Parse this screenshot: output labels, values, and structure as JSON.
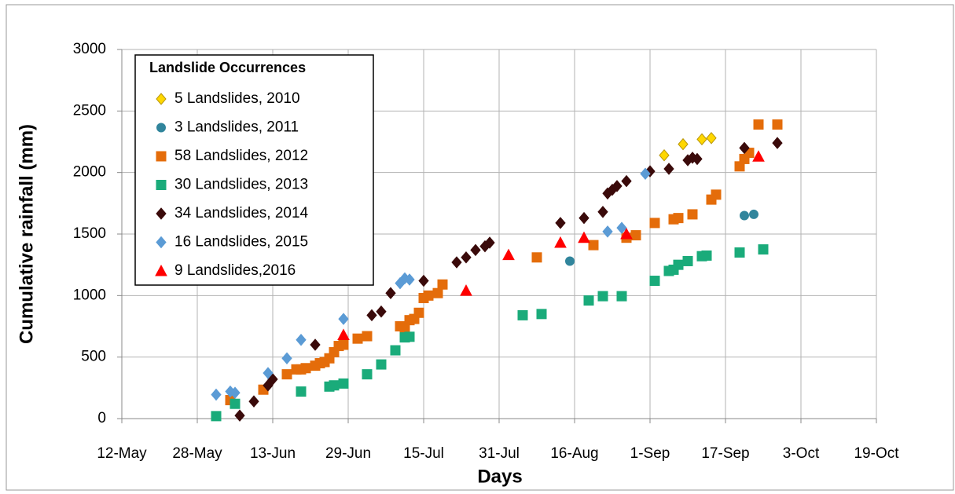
{
  "chart_data": {
    "type": "scatter",
    "y_label": "Cumulative rainfall (mm)",
    "x_label": "Days",
    "legend_title": "Landslide Occurrences",
    "legend": "upper left",
    "grid": true,
    "xlim": [
      "12-May",
      "19-Oct"
    ],
    "xticks": [
      "12-May",
      "28-May",
      "13-Jun",
      "29-Jun",
      "15-Jul",
      "31-Jul",
      "16-Aug",
      "1-Sep",
      "17-Sep",
      "3-Oct",
      "19-Oct"
    ],
    "ylim": [
      0,
      3000
    ],
    "yticks": [
      0,
      500,
      1000,
      1500,
      2000,
      2500,
      3000
    ],
    "series": [
      {
        "name": "5 Landslides, 2010",
        "color": "#ffd700",
        "marker": "diamond",
        "x": [
          "4-Sep",
          "8-Sep",
          "12-Sep",
          "14-Sep"
        ],
        "values": [
          2140,
          2230,
          2270,
          2280
        ]
      },
      {
        "name": "3 Landslides, 2011",
        "color": "#31859c",
        "marker": "circle",
        "x": [
          "15-Aug",
          "21-Sep",
          "23-Sep"
        ],
        "values": [
          1280,
          1650,
          1660
        ]
      },
      {
        "name": "58 Landslides, 2012",
        "color": "#e46c0a",
        "marker": "square",
        "x": [
          "4-Jun",
          "11-Jun",
          "16-Jun",
          "18-Jun",
          "19-Jun",
          "20-Jun",
          "22-Jun",
          "23-Jun",
          "24-Jun",
          "25-Jun",
          "26-Jun",
          "27-Jun",
          "28-Jun",
          "1-Jul",
          "3-Jul",
          "10-Jul",
          "11-Jul",
          "12-Jul",
          "13-Jul",
          "14-Jul",
          "15-Jul",
          "16-Jul",
          "18-Jul",
          "19-Jul",
          "8-Aug",
          "20-Aug",
          "27-Aug",
          "29-Aug",
          "2-Sep",
          "6-Sep",
          "7-Sep",
          "10-Sep",
          "14-Sep",
          "15-Sep",
          "20-Sep",
          "21-Sep",
          "22-Sep",
          "24-Sep",
          "28-Sep"
        ],
        "values": [
          150,
          235,
          360,
          400,
          400,
          410,
          430,
          450,
          460,
          490,
          540,
          590,
          600,
          650,
          670,
          750,
          740,
          800,
          810,
          860,
          980,
          1000,
          1020,
          1090,
          1310,
          1410,
          1470,
          1490,
          1590,
          1620,
          1630,
          1660,
          1780,
          1820,
          2050,
          2110,
          2160,
          2390,
          2390
        ]
      },
      {
        "name": "30 Landslides, 2013",
        "color": "#1aab7a",
        "marker": "square",
        "x": [
          "1-Jun",
          "5-Jun",
          "19-Jun",
          "25-Jun",
          "26-Jun",
          "28-Jun",
          "3-Jul",
          "6-Jul",
          "9-Jul",
          "11-Jul",
          "12-Jul",
          "5-Aug",
          "9-Aug",
          "19-Aug",
          "22-Aug",
          "26-Aug",
          "2-Sep",
          "5-Sep",
          "6-Sep",
          "7-Sep",
          "9-Sep",
          "12-Sep",
          "13-Sep",
          "20-Sep",
          "25-Sep"
        ],
        "values": [
          20,
          120,
          220,
          260,
          270,
          285,
          360,
          440,
          555,
          660,
          665,
          840,
          850,
          960,
          995,
          995,
          1120,
          1200,
          1210,
          1250,
          1280,
          1320,
          1325,
          1350,
          1375
        ]
      },
      {
        "name": "34 Landslides, 2014",
        "color": "#3a0a0a",
        "marker": "diamond",
        "x": [
          "6-Jun",
          "9-Jun",
          "12-Jun",
          "13-Jun",
          "22-Jun",
          "4-Jul",
          "6-Jul",
          "8-Jul",
          "15-Jul",
          "22-Jul",
          "24-Jul",
          "26-Jul",
          "28-Jul",
          "29-Jul",
          "13-Aug",
          "18-Aug",
          "22-Aug",
          "23-Aug",
          "24-Aug",
          "25-Aug",
          "27-Aug",
          "1-Sep",
          "5-Sep",
          "9-Sep",
          "10-Sep",
          "11-Sep",
          "21-Sep",
          "28-Sep"
        ],
        "values": [
          25,
          140,
          270,
          320,
          600,
          840,
          870,
          1020,
          1120,
          1270,
          1310,
          1370,
          1400,
          1430,
          1590,
          1630,
          1680,
          1830,
          1860,
          1890,
          1930,
          2010,
          2030,
          2100,
          2120,
          2110,
          2200,
          2240
        ]
      },
      {
        "name": "16 Landslides, 2015",
        "color": "#5b9bd5",
        "marker": "diamond",
        "x": [
          "1-Jun",
          "4-Jun",
          "5-Jun",
          "12-Jun",
          "16-Jun",
          "19-Jun",
          "28-Jun",
          "10-Jul",
          "11-Jul",
          "12-Jul",
          "23-Aug",
          "26-Aug",
          "31-Aug"
        ],
        "values": [
          195,
          220,
          210,
          370,
          490,
          640,
          810,
          1100,
          1140,
          1130,
          1520,
          1550,
          1990
        ]
      },
      {
        "name": "9 Landslides,2016",
        "color": "#ff0000",
        "marker": "triangle",
        "x": [
          "28-Jun",
          "24-Jul",
          "2-Aug",
          "13-Aug",
          "18-Aug",
          "27-Aug",
          "24-Sep"
        ],
        "values": [
          680,
          1040,
          1330,
          1430,
          1470,
          1500,
          2130
        ]
      }
    ]
  }
}
